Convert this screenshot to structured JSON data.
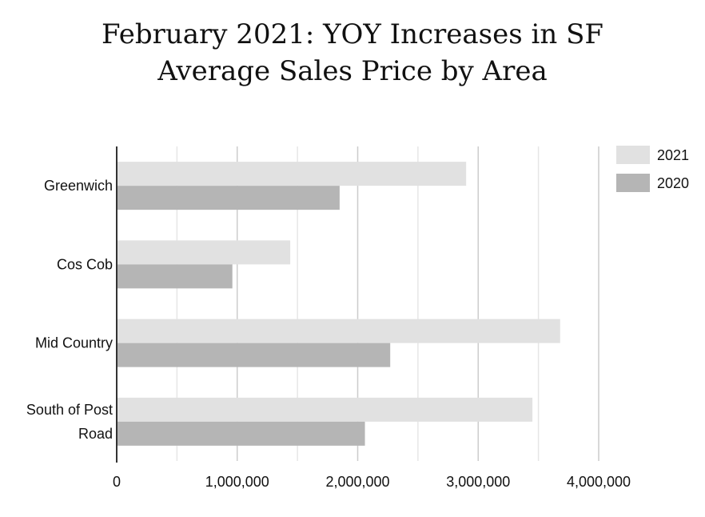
{
  "title_line1": "February 2021: YOY Increases in SF",
  "title_line2": "Average Sales Price by Area",
  "chart_data": {
    "type": "bar",
    "orientation": "horizontal",
    "title": "February 2021: YOY Increases in SF Average Sales Price by Area",
    "categories": [
      "Greenwich",
      "Cos Cob",
      "Mid Country",
      "South of Post Road"
    ],
    "category_lines": [
      [
        "Greenwich"
      ],
      [
        "Cos Cob"
      ],
      [
        "Mid Country"
      ],
      [
        "South of Post",
        "Road"
      ]
    ],
    "series": [
      {
        "name": "2021",
        "color": "#e1e1e1",
        "values": [
          2900000,
          1440000,
          3680000,
          3450000
        ]
      },
      {
        "name": "2020",
        "color": "#b5b5b5",
        "values": [
          1850000,
          960000,
          2270000,
          2060000
        ]
      }
    ],
    "xlim": [
      0,
      4000000
    ],
    "xticks": [
      0,
      1000000,
      2000000,
      3000000,
      4000000
    ],
    "xtick_labels": [
      "0",
      "1,000,000",
      "2,000,000",
      "3,000,000",
      "4,000,000"
    ],
    "grid": true,
    "legend_position": "right"
  }
}
